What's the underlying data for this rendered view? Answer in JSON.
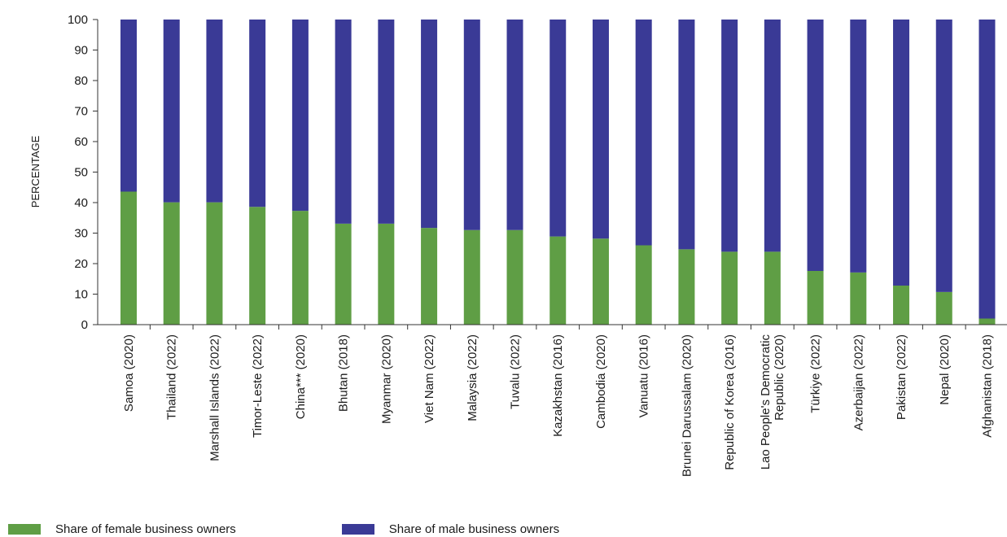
{
  "chart_data": {
    "type": "bar",
    "stacked": true,
    "ylabel": "PERCENTAGE",
    "ylim": [
      0,
      100
    ],
    "yticks": [
      "0",
      "10",
      "20",
      "30",
      "40",
      "50",
      "60",
      "70",
      "80",
      "90",
      "100"
    ],
    "grid": false,
    "legend_position": "bottom-left",
    "categories": [
      [
        "Samoa (2020)"
      ],
      [
        "Thailand (2022)"
      ],
      [
        "Marshall Islands (2022)"
      ],
      [
        "Timor-Leste (2022)"
      ],
      [
        "China*** (2020)"
      ],
      [
        "Bhutan (2018)"
      ],
      [
        "Myanmar (2020)"
      ],
      [
        "Viet Nam (2022)"
      ],
      [
        "Malaysia (2022)"
      ],
      [
        "Tuvalu (2022)"
      ],
      [
        "Kazakhstan (2016)"
      ],
      [
        "Cambodia (2020)"
      ],
      [
        "Vanuatu (2016)"
      ],
      [
        "Brunei Darussalam (2020)"
      ],
      [
        "Republic of Korea (2016)"
      ],
      [
        "Lao People's Democratic",
        "Republic (2020)"
      ],
      [
        "Türkiye (2022)"
      ],
      [
        "Azerbaijan (2022)"
      ],
      [
        "Pakistan (2022)"
      ],
      [
        "Nepal (2020)"
      ],
      [
        "Afghanistan (2018)"
      ]
    ],
    "series": [
      {
        "name": "Share of female business owners",
        "color": "#5f9e45",
        "values": [
          43.6,
          40.1,
          40.1,
          38.6,
          37.3,
          33.1,
          33.1,
          31.7,
          31.0,
          31.0,
          28.9,
          28.2,
          26.0,
          24.7,
          23.9,
          23.9,
          17.6,
          17.1,
          12.8,
          10.7,
          2.0
        ]
      },
      {
        "name": "Share of male business owners",
        "color": "#3a3a96",
        "values": [
          56.4,
          59.9,
          59.9,
          61.4,
          62.7,
          66.9,
          66.9,
          68.3,
          69.0,
          69.0,
          71.1,
          71.8,
          74.0,
          75.3,
          76.1,
          76.1,
          82.4,
          82.9,
          87.2,
          89.3,
          98.0
        ]
      }
    ]
  }
}
